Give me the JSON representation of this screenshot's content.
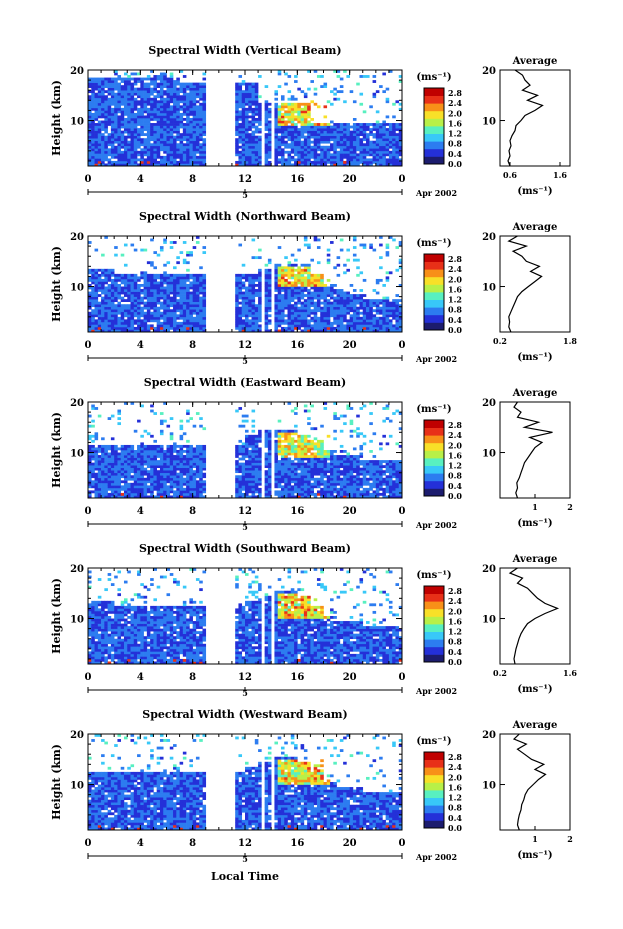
{
  "figure": {
    "xlabel": "Local Time",
    "date_label": "Apr 2002",
    "colorbar_unit": "(ms⁻¹)",
    "colorbar_ticks": [
      "0.0",
      "0.4",
      "0.8",
      "1.2",
      "1.6",
      "2.0",
      "2.4",
      "2.8"
    ],
    "colorbar_colors": [
      "#1c1c6e",
      "#2430d8",
      "#2c7cf0",
      "#38c8f8",
      "#58f0c0",
      "#b8f048",
      "#f8e028",
      "#f89018",
      "#e83018",
      "#c00000"
    ],
    "avg_title": "Average",
    "avg_xlabel": "(ms⁻¹)",
    "day_marker": "5"
  },
  "chart_data": [
    {
      "type": "heatmap",
      "title": "Spectral Width (Vertical Beam)",
      "ylabel": "Height (km)",
      "xlabel": "Local Time",
      "x_ticks": [
        "0",
        "4",
        "8",
        "12",
        "16",
        "20",
        "0"
      ],
      "y_ticks": [
        "20",
        "10"
      ],
      "ylim": [
        1,
        20
      ],
      "colorbar_range": [
        0.0,
        3.0
      ],
      "data_gaps_hours": [
        [
          8.8,
          11.2
        ],
        [
          13.2,
          13.5
        ],
        [
          13.9,
          14.2
        ],
        [
          17.8,
          18.0
        ]
      ],
      "cloud_top_km": [
        18,
        18,
        18,
        18,
        18,
        19,
        18,
        17,
        17,
        17,
        17,
        17,
        17,
        13,
        13,
        13,
        13,
        9,
        9,
        9,
        9,
        9,
        9,
        9
      ],
      "enhanced_region": {
        "time_h": [
          14.5,
          18.5
        ],
        "height_km": [
          9,
          14
        ],
        "value": 2.4
      },
      "profile": {
        "title": "Average",
        "xlabel": "(ms⁻¹)",
        "x_ticks": [
          "0.6",
          "1.6"
        ],
        "xlim": [
          0.4,
          1.8
        ],
        "y_ticks": [
          "20",
          "10"
        ],
        "heights_km": [
          1,
          2,
          3,
          4,
          5,
          6,
          7,
          8,
          9,
          10,
          11,
          12,
          13,
          14,
          15,
          16,
          17,
          18,
          19,
          20
        ],
        "values": [
          0.6,
          0.56,
          0.6,
          0.58,
          0.62,
          0.6,
          0.64,
          0.7,
          0.72,
          0.82,
          0.9,
          1.1,
          1.25,
          0.95,
          1.15,
          0.85,
          1.0,
          0.9,
          0.85,
          0.7
        ]
      }
    },
    {
      "type": "heatmap",
      "title": "Spectral Width (Northward Beam)",
      "ylabel": "Height (km)",
      "xlabel": "Local Time",
      "x_ticks": [
        "0",
        "4",
        "8",
        "12",
        "16",
        "20",
        "0"
      ],
      "y_ticks": [
        "20",
        "10"
      ],
      "ylim": [
        1,
        20
      ],
      "colorbar_range": [
        0.0,
        3.0
      ],
      "data_gaps_hours": [
        [
          8.8,
          11.2
        ],
        [
          13.2,
          13.5
        ],
        [
          13.9,
          14.2
        ],
        [
          17.8,
          18.0
        ]
      ],
      "cloud_top_km": [
        13,
        13,
        12,
        12,
        12,
        12,
        12,
        12,
        12,
        12,
        12,
        12,
        12,
        13,
        14,
        14,
        14,
        12,
        10,
        9,
        8,
        7,
        7,
        7
      ],
      "enhanced_region": {
        "time_h": [
          14.5,
          18.5
        ],
        "height_km": [
          10,
          14
        ],
        "value": 2.4
      },
      "profile": {
        "title": "Average",
        "xlabel": "(ms⁻¹)",
        "x_ticks": [
          "0.2",
          "1.8"
        ],
        "xlim": [
          0.2,
          1.8
        ],
        "y_ticks": [
          "20",
          "10"
        ],
        "heights_km": [
          1,
          2,
          3,
          4,
          5,
          6,
          7,
          8,
          9,
          10,
          11,
          12,
          13,
          14,
          15,
          16,
          17,
          18,
          19,
          20
        ],
        "values": [
          0.45,
          0.4,
          0.42,
          0.4,
          0.45,
          0.5,
          0.55,
          0.6,
          0.7,
          0.85,
          1.0,
          1.15,
          0.9,
          1.1,
          0.8,
          0.7,
          0.5,
          0.8,
          0.4,
          0.6
        ]
      }
    },
    {
      "type": "heatmap",
      "title": "Spectral Width (Eastward Beam)",
      "ylabel": "Height (km)",
      "xlabel": "Local Time",
      "x_ticks": [
        "0",
        "4",
        "8",
        "12",
        "16",
        "20",
        "0"
      ],
      "y_ticks": [
        "20",
        "10"
      ],
      "ylim": [
        1,
        20
      ],
      "colorbar_range": [
        0.0,
        3.0
      ],
      "data_gaps_hours": [
        [
          8.8,
          11.2
        ],
        [
          13.2,
          13.5
        ],
        [
          13.9,
          14.2
        ],
        [
          17.8,
          18.0
        ]
      ],
      "cloud_top_km": [
        11,
        11,
        11,
        11,
        11,
        11,
        11,
        11,
        11,
        11,
        11,
        11,
        13,
        14,
        14,
        14,
        13,
        12,
        10,
        9,
        9,
        8,
        8,
        8
      ],
      "enhanced_region": {
        "time_h": [
          14.5,
          18.5
        ],
        "height_km": [
          9,
          14
        ],
        "value": 2.2
      },
      "profile": {
        "title": "Average",
        "xlabel": "(ms⁻¹)",
        "x_ticks": [
          "1",
          "2"
        ],
        "xlim": [
          0,
          2
        ],
        "y_ticks": [
          "20",
          "10"
        ],
        "heights_km": [
          1,
          2,
          3,
          4,
          5,
          6,
          7,
          8,
          9,
          10,
          11,
          12,
          13,
          14,
          15,
          16,
          17,
          18,
          19,
          20
        ],
        "values": [
          0.5,
          0.45,
          0.5,
          0.48,
          0.55,
          0.6,
          0.65,
          0.7,
          0.8,
          0.9,
          1.0,
          1.2,
          0.85,
          1.5,
          0.7,
          1.1,
          0.5,
          0.6,
          0.4,
          0.5
        ]
      }
    },
    {
      "type": "heatmap",
      "title": "Spectral Width (Southward Beam)",
      "ylabel": "Height (km)",
      "xlabel": "Local Time",
      "x_ticks": [
        "0",
        "4",
        "8",
        "12",
        "16",
        "20",
        "0"
      ],
      "y_ticks": [
        "20",
        "10"
      ],
      "ylim": [
        1,
        20
      ],
      "colorbar_range": [
        0.0,
        3.0
      ],
      "data_gaps_hours": [
        [
          8.8,
          11.2
        ],
        [
          13.2,
          13.5
        ],
        [
          13.9,
          14.2
        ],
        [
          17.8,
          18.0
        ]
      ],
      "cloud_top_km": [
        13,
        13,
        12,
        12,
        12,
        12,
        12,
        12,
        12,
        12,
        12,
        12,
        13,
        14,
        15,
        15,
        14,
        12,
        10,
        9,
        9,
        8,
        8,
        8
      ],
      "enhanced_region": {
        "time_h": [
          14.5,
          18.5
        ],
        "height_km": [
          10,
          15
        ],
        "value": 2.5
      },
      "profile": {
        "title": "Average",
        "xlabel": "(ms⁻¹)",
        "x_ticks": [
          "0.2",
          "1.6"
        ],
        "xlim": [
          0.2,
          1.6
        ],
        "y_ticks": [
          "20",
          "10"
        ],
        "heights_km": [
          1,
          2,
          3,
          4,
          5,
          6,
          7,
          8,
          9,
          10,
          11,
          12,
          13,
          14,
          15,
          16,
          17,
          18,
          19,
          20
        ],
        "values": [
          0.5,
          0.48,
          0.5,
          0.52,
          0.55,
          0.58,
          0.62,
          0.68,
          0.75,
          0.9,
          1.1,
          1.35,
          1.1,
          0.95,
          0.85,
          0.75,
          0.55,
          0.65,
          0.4,
          0.55
        ]
      }
    },
    {
      "type": "heatmap",
      "title": "Spectral Width (Westward Beam)",
      "ylabel": "Height (km)",
      "xlabel": "Local Time",
      "x_ticks": [
        "0",
        "4",
        "8",
        "12",
        "16",
        "20",
        "0"
      ],
      "y_ticks": [
        "20",
        "10"
      ],
      "ylim": [
        1,
        20
      ],
      "colorbar_range": [
        0.0,
        3.0
      ],
      "data_gaps_hours": [
        [
          8.8,
          11.2
        ],
        [
          13.2,
          13.5
        ],
        [
          13.9,
          14.2
        ],
        [
          17.8,
          18.0
        ]
      ],
      "cloud_top_km": [
        12,
        12,
        12,
        12,
        12,
        12,
        12,
        12,
        12,
        12,
        12,
        12,
        13,
        14,
        15,
        15,
        14,
        12,
        10,
        9,
        9,
        8,
        8,
        8
      ],
      "enhanced_region": {
        "time_h": [
          14.5,
          18.5
        ],
        "height_km": [
          10,
          15
        ],
        "value": 2.4
      },
      "profile": {
        "title": "Average",
        "xlabel": "(ms⁻¹)",
        "x_ticks": [
          "1",
          "2"
        ],
        "xlim": [
          0,
          2
        ],
        "y_ticks": [
          "20",
          "10"
        ],
        "heights_km": [
          1,
          2,
          3,
          4,
          5,
          6,
          7,
          8,
          9,
          10,
          11,
          12,
          13,
          14,
          15,
          16,
          17,
          18,
          19,
          20
        ],
        "values": [
          0.55,
          0.5,
          0.52,
          0.55,
          0.6,
          0.62,
          0.68,
          0.72,
          0.8,
          0.95,
          1.1,
          1.3,
          1.0,
          1.25,
          0.9,
          0.7,
          0.5,
          0.75,
          0.4,
          0.55
        ]
      }
    }
  ]
}
